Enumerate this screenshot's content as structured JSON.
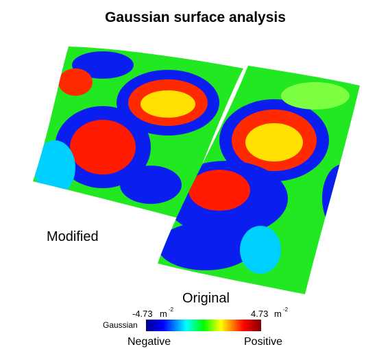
{
  "header": {
    "title": "Gaussian surface analysis"
  },
  "surfaces": [
    {
      "label": "Modified"
    },
    {
      "label": "Original"
    }
  ],
  "colorbar": {
    "label": "Gaussian",
    "min": "-4.73",
    "max": "4.73",
    "unit": "m",
    "exponent": "-2",
    "low_label": "Negative",
    "high_label": "Positive"
  }
}
